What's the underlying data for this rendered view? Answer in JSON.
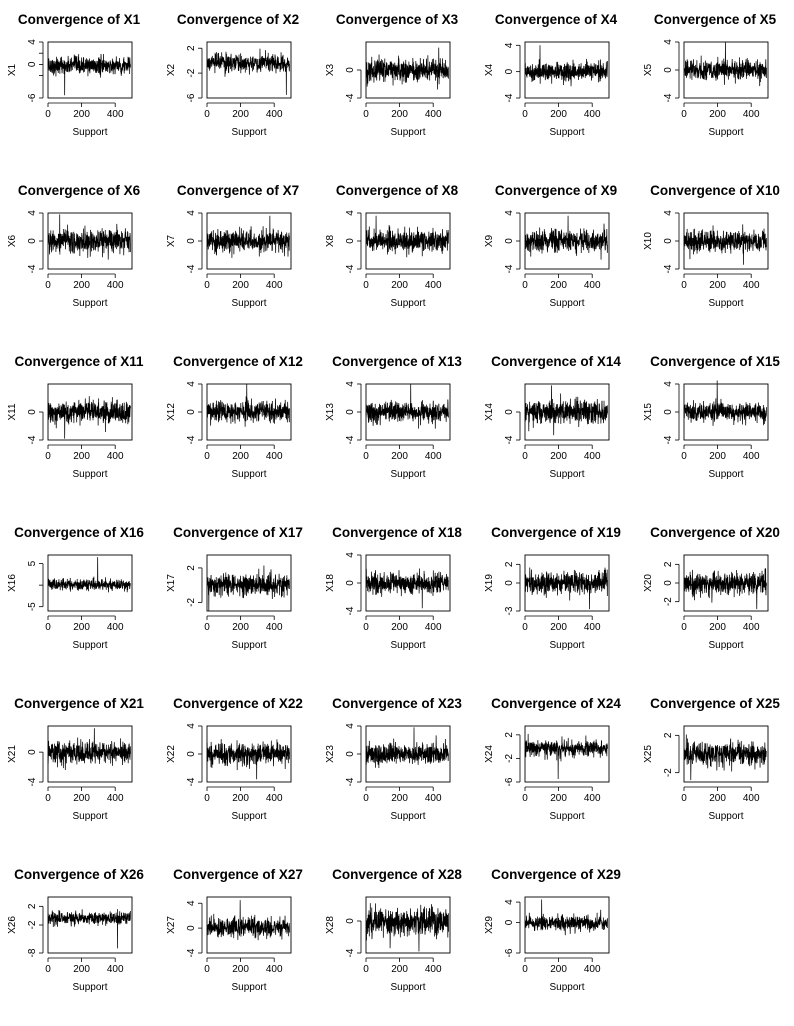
{
  "chart_data": [
    {
      "type": "line",
      "title": "Convergence of X1",
      "xlabel": "Support",
      "ylabel": "X1",
      "xlim": [
        0,
        500
      ],
      "ylim": [
        -6,
        4
      ],
      "xticks": [
        "0",
        "200",
        "400"
      ],
      "yticks": [
        "-6",
        "-2",
        "0",
        "2",
        "4"
      ],
      "ytick_labels": [
        "-6",
        "",
        "0",
        "",
        "4"
      ],
      "spike": [
        100,
        -5.5
      ],
      "amp": 1.4,
      "series": [
        {
          "name": "X1",
          "x_range": [
            1,
            500
          ],
          "n": 500
        }
      ]
    },
    {
      "type": "line",
      "title": "Convergence of X2",
      "xlabel": "Support",
      "ylabel": "X2",
      "xlim": [
        0,
        500
      ],
      "ylim": [
        -6,
        3
      ],
      "yticks": [
        "-6",
        "-2",
        "2"
      ],
      "ytick_labels": [
        "-6",
        "-2",
        "2"
      ],
      "spike": [
        480,
        -5.5
      ],
      "amp": 1.3,
      "series": [
        {
          "name": "X2",
          "x_range": [
            1,
            500
          ],
          "n": 500
        }
      ]
    },
    {
      "type": "line",
      "title": "Convergence of X3",
      "xlabel": "Support",
      "ylabel": "X3",
      "xlim": [
        0,
        500
      ],
      "ylim": [
        -4,
        4
      ],
      "yticks": [
        "-4",
        "0"
      ],
      "ytick_labels": [
        "-4",
        "0"
      ],
      "spike": [
        440,
        3.2
      ],
      "amp": 1.5,
      "series": [
        {
          "name": "X3",
          "x_range": [
            1,
            500
          ],
          "n": 500
        }
      ]
    },
    {
      "type": "line",
      "title": "Convergence of X4",
      "xlabel": "Support",
      "ylabel": "X4",
      "xlim": [
        0,
        500
      ],
      "ylim": [
        -4,
        4.5
      ],
      "yticks": [
        "-4",
        "0",
        "4"
      ],
      "ytick_labels": [
        "-4",
        "0",
        "4"
      ],
      "spike": [
        90,
        4.0
      ],
      "amp": 1.3,
      "series": [
        {
          "name": "X4",
          "x_range": [
            1,
            500
          ],
          "n": 500
        }
      ]
    },
    {
      "type": "line",
      "title": "Convergence of X5",
      "xlabel": "Support",
      "ylabel": "X5",
      "xlim": [
        0,
        500
      ],
      "ylim": [
        -4,
        4
      ],
      "yticks": [
        "-4",
        "0",
        "4"
      ],
      "ytick_labels": [
        "-4",
        "0",
        "4"
      ],
      "spike": [
        250,
        4.0
      ],
      "amp": 1.3,
      "series": [
        {
          "name": "X5",
          "x_range": [
            1,
            500
          ],
          "n": 500
        }
      ]
    },
    {
      "type": "line",
      "title": "Convergence of X6",
      "xlabel": "Support",
      "ylabel": "X6",
      "xlim": [
        0,
        500
      ],
      "ylim": [
        -4,
        4
      ],
      "yticks": [
        "-4",
        "0",
        "4"
      ],
      "ytick_labels": [
        "-4",
        "0",
        "4"
      ],
      "spike": [
        70,
        3.8
      ],
      "amp": 1.5,
      "series": [
        {
          "name": "X6",
          "x_range": [
            1,
            500
          ],
          "n": 500
        }
      ]
    },
    {
      "type": "line",
      "title": "Convergence of X7",
      "xlabel": "Support",
      "ylabel": "X7",
      "xlim": [
        0,
        500
      ],
      "ylim": [
        -4,
        4
      ],
      "yticks": [
        "-4",
        "0",
        "4"
      ],
      "ytick_labels": [
        "-4",
        "0",
        "4"
      ],
      "spike": [
        380,
        3.6
      ],
      "amp": 1.4,
      "series": [
        {
          "name": "X7",
          "x_range": [
            1,
            500
          ],
          "n": 500
        }
      ]
    },
    {
      "type": "line",
      "title": "Convergence of X8",
      "xlabel": "Support",
      "ylabel": "X8",
      "xlim": [
        0,
        500
      ],
      "ylim": [
        -4,
        4
      ],
      "yticks": [
        "-4",
        "0",
        "4"
      ],
      "ytick_labels": [
        "-4",
        "0",
        "4"
      ],
      "spike": [
        60,
        3.6
      ],
      "amp": 1.4,
      "series": [
        {
          "name": "X8",
          "x_range": [
            1,
            500
          ],
          "n": 500
        }
      ]
    },
    {
      "type": "line",
      "title": "Convergence of X9",
      "xlabel": "Support",
      "ylabel": "X9",
      "xlim": [
        0,
        500
      ],
      "ylim": [
        -4,
        4
      ],
      "yticks": [
        "-4",
        "0",
        "4"
      ],
      "ytick_labels": [
        "-4",
        "0",
        "4"
      ],
      "spike": [
        260,
        3.6
      ],
      "amp": 1.4,
      "series": [
        {
          "name": "X9",
          "x_range": [
            1,
            500
          ],
          "n": 500
        }
      ]
    },
    {
      "type": "line",
      "title": "Convergence of X10",
      "xlabel": "Support",
      "ylabel": "X10",
      "xlim": [
        0,
        500
      ],
      "ylim": [
        -4,
        4
      ],
      "yticks": [
        "-4",
        "0",
        "4"
      ],
      "ytick_labels": [
        "-4",
        "0",
        "4"
      ],
      "spike": [
        360,
        -3.4
      ],
      "amp": 1.4,
      "series": [
        {
          "name": "X10",
          "x_range": [
            1,
            500
          ],
          "n": 500
        }
      ]
    },
    {
      "type": "line",
      "title": "Convergence of X11",
      "xlabel": "Support",
      "ylabel": "X11",
      "xlim": [
        0,
        500
      ],
      "ylim": [
        -4,
        4
      ],
      "yticks": [
        "-4",
        "0"
      ],
      "ytick_labels": [
        "-4",
        "0"
      ],
      "spike": [
        100,
        -3.8
      ],
      "amp": 1.4,
      "series": [
        {
          "name": "X11",
          "x_range": [
            1,
            500
          ],
          "n": 500
        }
      ]
    },
    {
      "type": "line",
      "title": "Convergence of X12",
      "xlabel": "Support",
      "ylabel": "X12",
      "xlim": [
        0,
        500
      ],
      "ylim": [
        -4,
        4
      ],
      "yticks": [
        "-4",
        "0",
        "4"
      ],
      "ytick_labels": [
        "-4",
        "0",
        "4"
      ],
      "spike": [
        240,
        4.0
      ],
      "amp": 1.4,
      "series": [
        {
          "name": "X12",
          "x_range": [
            1,
            500
          ],
          "n": 500
        }
      ]
    },
    {
      "type": "line",
      "title": "Convergence of X13",
      "xlabel": "Support",
      "ylabel": "X13",
      "xlim": [
        0,
        500
      ],
      "ylim": [
        -4,
        4
      ],
      "yticks": [
        "-4",
        "0",
        "4"
      ],
      "ytick_labels": [
        "-4",
        "0",
        "4"
      ],
      "spike": [
        270,
        4.0
      ],
      "amp": 1.3,
      "series": [
        {
          "name": "X13",
          "x_range": [
            1,
            500
          ],
          "n": 500
        }
      ]
    },
    {
      "type": "line",
      "title": "Convergence of X14",
      "xlabel": "Support",
      "ylabel": "X14",
      "xlim": [
        0,
        500
      ],
      "ylim": [
        -4,
        4
      ],
      "yticks": [
        "-4",
        "0"
      ],
      "ytick_labels": [
        "-4",
        "0"
      ],
      "spike": [
        160,
        3.8
      ],
      "amp": 1.6,
      "series": [
        {
          "name": "X14",
          "x_range": [
            1,
            500
          ],
          "n": 500
        }
      ]
    },
    {
      "type": "line",
      "title": "Convergence of X15",
      "xlabel": "Support",
      "ylabel": "X15",
      "xlim": [
        0,
        500
      ],
      "ylim": [
        -4,
        4
      ],
      "yticks": [
        "-4",
        "0",
        "4"
      ],
      "ytick_labels": [
        "-4",
        "0",
        "4"
      ],
      "spike": [
        200,
        4.5
      ],
      "amp": 1.2,
      "series": [
        {
          "name": "X15",
          "x_range": [
            1,
            500
          ],
          "n": 500
        }
      ]
    },
    {
      "type": "line",
      "title": "Convergence of X16",
      "xlabel": "Support",
      "ylabel": "X16",
      "xlim": [
        0,
        500
      ],
      "ylim": [
        -6,
        7
      ],
      "yticks": [
        "-5",
        "0",
        "5"
      ],
      "ytick_labels": [
        "-5",
        "",
        "5"
      ],
      "spike": [
        300,
        6.5
      ],
      "amp": 1.2,
      "series": [
        {
          "name": "X16",
          "x_range": [
            1,
            500
          ],
          "n": 500
        }
      ]
    },
    {
      "type": "line",
      "title": "Convergence of X17",
      "xlabel": "Support",
      "ylabel": "X17",
      "xlim": [
        0,
        500
      ],
      "ylim": [
        -3,
        3.5
      ],
      "yticks": [
        "-2",
        "2"
      ],
      "ytick_labels": [
        "-2",
        "2"
      ],
      "spike": [
        10,
        -3.0
      ],
      "amp": 1.1,
      "series": [
        {
          "name": "X17",
          "x_range": [
            1,
            500
          ],
          "n": 500
        }
      ]
    },
    {
      "type": "line",
      "title": "Convergence of X18",
      "xlabel": "Support",
      "ylabel": "X18",
      "xlim": [
        0,
        500
      ],
      "ylim": [
        -4,
        4
      ],
      "yticks": [
        "-4",
        "0",
        "4"
      ],
      "ytick_labels": [
        "-4",
        "0",
        "4"
      ],
      "spike": [
        340,
        -3.6
      ],
      "amp": 1.3,
      "series": [
        {
          "name": "X18",
          "x_range": [
            1,
            500
          ],
          "n": 500
        }
      ]
    },
    {
      "type": "line",
      "title": "Convergence of X19",
      "xlabel": "Support",
      "ylabel": "X19",
      "xlim": [
        0,
        500
      ],
      "ylim": [
        -3,
        3
      ],
      "yticks": [
        "-3",
        "0",
        "2"
      ],
      "ytick_labels": [
        "-3",
        "0",
        "2"
      ],
      "spike": [
        390,
        -2.8
      ],
      "amp": 1.1,
      "series": [
        {
          "name": "X19",
          "x_range": [
            1,
            500
          ],
          "n": 500
        }
      ]
    },
    {
      "type": "line",
      "title": "Convergence of X20",
      "xlabel": "Support",
      "ylabel": "X20",
      "xlim": [
        0,
        500
      ],
      "ylim": [
        -3,
        3
      ],
      "yticks": [
        "-2",
        "0",
        "2"
      ],
      "ytick_labels": [
        "-2",
        "0",
        "2"
      ],
      "spike": [
        440,
        -2.8
      ],
      "amp": 1.1,
      "series": [
        {
          "name": "X20",
          "x_range": [
            1,
            500
          ],
          "n": 500
        }
      ]
    },
    {
      "type": "line",
      "title": "Convergence of X21",
      "xlabel": "Support",
      "ylabel": "X21",
      "xlim": [
        0,
        500
      ],
      "ylim": [
        -4,
        3.5
      ],
      "yticks": [
        "-4",
        "0"
      ],
      "ytick_labels": [
        "-4",
        "0"
      ],
      "spike": [
        280,
        3.2
      ],
      "amp": 1.3,
      "series": [
        {
          "name": "X21",
          "x_range": [
            1,
            500
          ],
          "n": 500
        }
      ]
    },
    {
      "type": "line",
      "title": "Convergence of X22",
      "xlabel": "Support",
      "ylabel": "X22",
      "xlim": [
        0,
        500
      ],
      "ylim": [
        -4,
        4
      ],
      "yticks": [
        "-4",
        "0",
        "4"
      ],
      "ytick_labels": [
        "-4",
        "0",
        "4"
      ],
      "spike": [
        300,
        -3.6
      ],
      "amp": 1.4,
      "series": [
        {
          "name": "X22",
          "x_range": [
            1,
            500
          ],
          "n": 500
        }
      ]
    },
    {
      "type": "line",
      "title": "Convergence of X23",
      "xlabel": "Support",
      "ylabel": "X23",
      "xlim": [
        0,
        500
      ],
      "ylim": [
        -4,
        4
      ],
      "yticks": [
        "-4",
        "0",
        "4"
      ],
      "ytick_labels": [
        "-4",
        "0",
        "4"
      ],
      "spike": [
        290,
        3.8
      ],
      "amp": 1.3,
      "series": [
        {
          "name": "X23",
          "x_range": [
            1,
            500
          ],
          "n": 500
        }
      ]
    },
    {
      "type": "line",
      "title": "Convergence of X24",
      "xlabel": "Support",
      "ylabel": "X24",
      "xlim": [
        0,
        500
      ],
      "ylim": [
        -6,
        3.5
      ],
      "yticks": [
        "-6",
        "-2",
        "2"
      ],
      "ytick_labels": [
        "-6",
        "-2",
        "2"
      ],
      "spike": [
        200,
        -5.5
      ],
      "amp": 1.2,
      "series": [
        {
          "name": "X24",
          "x_range": [
            1,
            500
          ],
          "n": 500
        }
      ]
    },
    {
      "type": "line",
      "title": "Convergence of X25",
      "xlabel": "Support",
      "ylabel": "X25",
      "xlim": [
        0,
        500
      ],
      "ylim": [
        -3,
        3
      ],
      "yticks": [
        "-2",
        "2"
      ],
      "ytick_labels": [
        "-2",
        "2"
      ],
      "spike": [
        40,
        -2.8
      ],
      "amp": 1.2,
      "series": [
        {
          "name": "X25",
          "x_range": [
            1,
            500
          ],
          "n": 500
        }
      ]
    },
    {
      "type": "line",
      "title": "Convergence of X26",
      "xlabel": "Support",
      "ylabel": "X26",
      "xlim": [
        0,
        500
      ],
      "ylim": [
        -8,
        4
      ],
      "yticks": [
        "-8",
        "-2",
        "2"
      ],
      "ytick_labels": [
        "-8",
        "-2",
        "2"
      ],
      "spike": [
        420,
        -7.0
      ],
      "amp": 1.3,
      "series": [
        {
          "name": "X26",
          "x_range": [
            1,
            500
          ],
          "n": 500
        }
      ]
    },
    {
      "type": "line",
      "title": "Convergence of X27",
      "xlabel": "Support",
      "ylabel": "X27",
      "xlim": [
        0,
        500
      ],
      "ylim": [
        -4,
        5
      ],
      "yticks": [
        "-4",
        "0",
        "4"
      ],
      "ytick_labels": [
        "-4",
        "0",
        "4"
      ],
      "spike": [
        200,
        4.5
      ],
      "amp": 1.4,
      "series": [
        {
          "name": "X27",
          "x_range": [
            1,
            500
          ],
          "n": 500
        }
      ]
    },
    {
      "type": "line",
      "title": "Convergence of X28",
      "xlabel": "Support",
      "ylabel": "X28",
      "xlim": [
        0,
        500
      ],
      "ylim": [
        -4,
        3
      ],
      "yticks": [
        "-4",
        "0"
      ],
      "ytick_labels": [
        "-4",
        "0"
      ],
      "spike": [
        320,
        -3.8
      ],
      "amp": 1.6,
      "series": [
        {
          "name": "X28",
          "x_range": [
            1,
            500
          ],
          "n": 500
        }
      ]
    },
    {
      "type": "line",
      "title": "Convergence of X29",
      "xlabel": "Support",
      "ylabel": "X29",
      "xlim": [
        0,
        500
      ],
      "ylim": [
        -6,
        5
      ],
      "yticks": [
        "-6",
        "0",
        "4"
      ],
      "ytick_labels": [
        "-6",
        "0",
        "4"
      ],
      "spike": [
        100,
        4.5
      ],
      "amp": 1.3,
      "series": [
        {
          "name": "X29",
          "x_range": [
            1,
            500
          ],
          "n": 500
        }
      ]
    }
  ]
}
